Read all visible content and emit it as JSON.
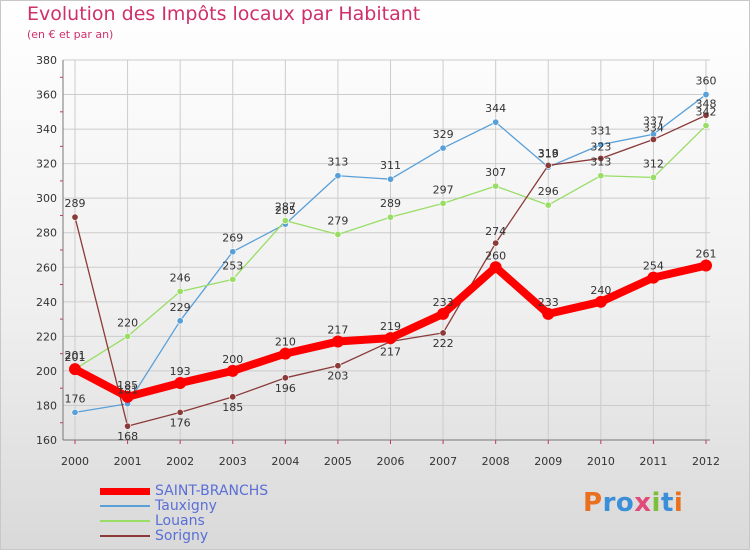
{
  "title": "Evolution des Impôts locaux par Habitant",
  "subtitle": "(en € et par an)",
  "logo": {
    "text": "Proxiti",
    "colors": [
      "#e8701f",
      "#3a8fd8",
      "#3a8fd8",
      "#e24a7a",
      "#7cbf3a",
      "#3a8fd8",
      "#e8701f"
    ]
  },
  "colors": {
    "title": "#d0306a",
    "grid": "#cccccc",
    "axis": "#777777",
    "tick_marks": "#cc3355"
  },
  "chart_data": {
    "type": "line",
    "title": "Evolution des Impôts locaux par Habitant",
    "subtitle": "(en € et par an)",
    "xlabel": "",
    "ylabel": "",
    "ylim": [
      160,
      380
    ],
    "y_ticks": [
      160,
      180,
      200,
      220,
      240,
      260,
      280,
      300,
      320,
      340,
      360,
      380
    ],
    "categories": [
      "2000",
      "2001",
      "2002",
      "2003",
      "2004",
      "2005",
      "2006",
      "2007",
      "2008",
      "2009",
      "2010",
      "2011",
      "2012"
    ],
    "grid": true,
    "legend_position": "bottom-left",
    "series": [
      {
        "name": "SAINT-BRANCHS",
        "color": "#ff0000",
        "values": [
          201,
          185,
          193,
          200,
          210,
          217,
          219,
          233,
          260,
          233,
          240,
          254,
          261
        ]
      },
      {
        "name": "Tauxigny",
        "color": "#5aa0d8",
        "values": [
          176,
          181,
          229,
          269,
          285,
          313,
          311,
          329,
          344,
          318,
          331,
          337,
          360
        ]
      },
      {
        "name": "Louans",
        "color": "#99dd66",
        "values": [
          201,
          220,
          246,
          253,
          287,
          279,
          289,
          297,
          307,
          296,
          313,
          312,
          342
        ]
      },
      {
        "name": "Sorigny",
        "color": "#8b3a3a",
        "values": [
          289,
          168,
          176,
          185,
          196,
          203,
          217,
          222,
          274,
          319,
          323,
          334,
          348
        ]
      }
    ]
  }
}
